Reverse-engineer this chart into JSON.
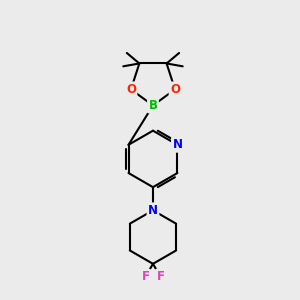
{
  "background_color": "#ebebeb",
  "atom_colors": {
    "B": "#00bb00",
    "O": "#ff2200",
    "N": "#0000ff",
    "F": "#dd44bb",
    "C": "#000000"
  },
  "bond_color": "#000000",
  "bond_width": 1.5,
  "font_size_atom": 8.5
}
